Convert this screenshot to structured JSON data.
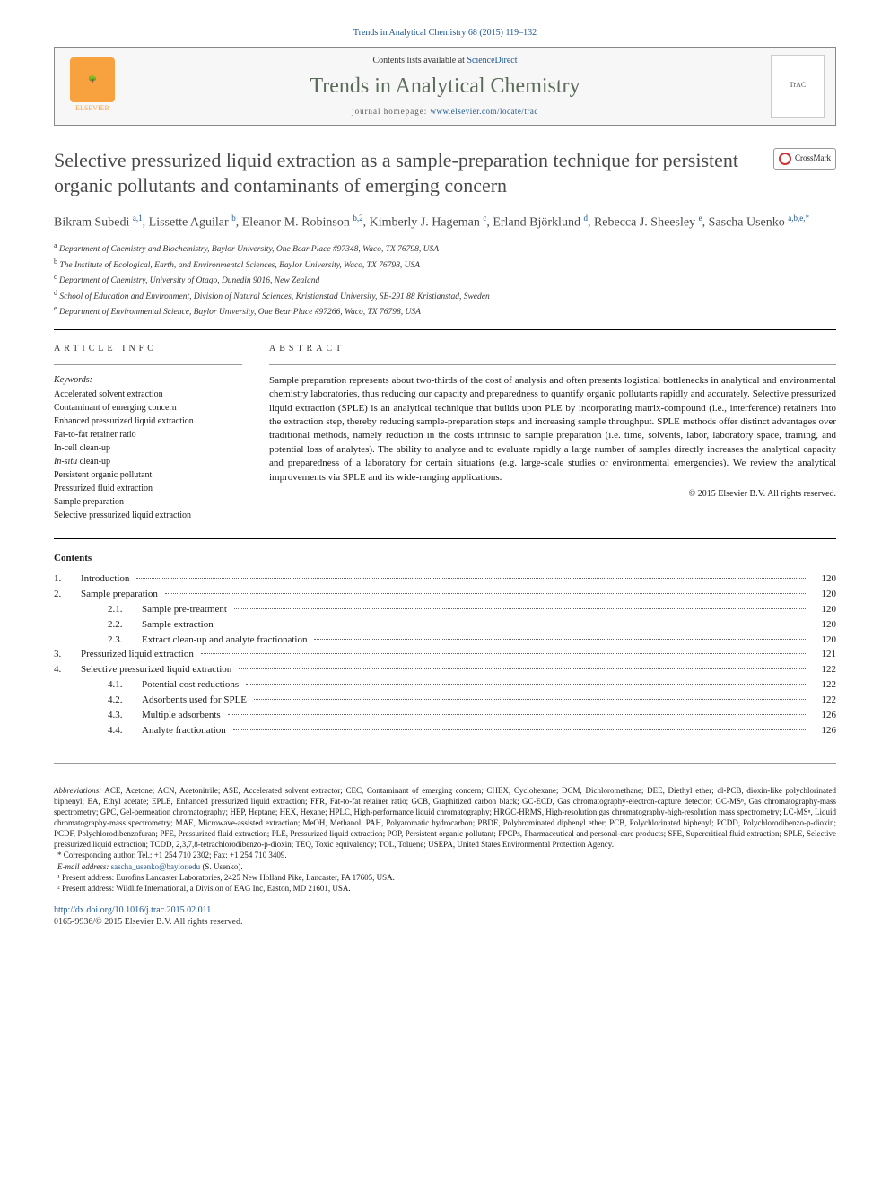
{
  "journal_ref": "Trends in Analytical Chemistry 68 (2015) 119–132",
  "header": {
    "contents_prefix": "Contents lists available at ",
    "contents_link_text": "ScienceDirect",
    "journal_name": "Trends in Analytical Chemistry",
    "homepage_prefix": "journal homepage: ",
    "homepage_link_text": "www.elsevier.com/locate/trac",
    "publisher_glyph": "🌳",
    "publisher_name": "ELSEVIER",
    "cover_label": "TrAC"
  },
  "crossmark_label": "CrossMark",
  "title": "Selective pressurized liquid extraction as a sample-preparation technique for persistent organic pollutants and contaminants of emerging concern",
  "authors_html": "Bikram Subedi <sup>a,1</sup>, Lissette Aguilar <sup>b</sup>, Eleanor M. Robinson <sup>b,2</sup>, Kimberly J. Hageman <sup>c</sup>, Erland Björklund <sup>d</sup>, Rebecca J. Sheesley <sup>e</sup>, Sascha Usenko <sup>a,b,e,*</sup>",
  "affiliations": [
    {
      "sup": "a",
      "text": "Department of Chemistry and Biochemistry, Baylor University, One Bear Place #97348, Waco, TX 76798, USA"
    },
    {
      "sup": "b",
      "text": "The Institute of Ecological, Earth, and Environmental Sciences, Baylor University, Waco, TX 76798, USA"
    },
    {
      "sup": "c",
      "text": "Department of Chemistry, University of Otago, Dunedin 9016, New Zealand"
    },
    {
      "sup": "d",
      "text": "School of Education and Environment, Division of Natural Sciences, Kristianstad University, SE-291 88 Kristianstad, Sweden"
    },
    {
      "sup": "e",
      "text": "Department of Environmental Science, Baylor University, One Bear Place #97266, Waco, TX 76798, USA"
    }
  ],
  "article_info_head": "ARTICLE INFO",
  "abstract_head": "ABSTRACT",
  "keywords_label": "Keywords:",
  "keywords": [
    "Accelerated solvent extraction",
    "Contaminant of emerging concern",
    "Enhanced pressurized liquid extraction",
    "Fat-to-fat retainer ratio",
    "In-cell clean-up",
    "In-situ clean-up",
    "Persistent organic pollutant",
    "Pressurized fluid extraction",
    "Sample preparation",
    "Selective pressurized liquid extraction"
  ],
  "abstract": "Sample preparation represents about two-thirds of the cost of analysis and often presents logistical bottlenecks in analytical and environmental chemistry laboratories, thus reducing our capacity and preparedness to quantify organic pollutants rapidly and accurately. Selective pressurized liquid extraction (SPLE) is an analytical technique that builds upon PLE by incorporating matrix-compound (i.e., interference) retainers into the extraction step, thereby reducing sample-preparation steps and increasing sample throughput. SPLE methods offer distinct advantages over traditional methods, namely reduction in the costs intrinsic to sample preparation (i.e. time, solvents, labor, laboratory space, training, and potential loss of analytes). The ability to analyze and to evaluate rapidly a large number of samples directly increases the analytical capacity and preparedness of a laboratory for certain situations (e.g. large-scale studies or environmental emergencies). We review the analytical improvements via SPLE and its wide-ranging applications.",
  "copyright": "© 2015 Elsevier B.V. All rights reserved.",
  "contents_label": "Contents",
  "toc": [
    {
      "num": "1.",
      "label": "Introduction",
      "page": "120"
    },
    {
      "num": "2.",
      "label": "Sample preparation",
      "page": "120"
    },
    {
      "sub": "2.1.",
      "label": "Sample pre-treatment",
      "page": "120"
    },
    {
      "sub": "2.2.",
      "label": "Sample extraction",
      "page": "120"
    },
    {
      "sub": "2.3.",
      "label": "Extract clean-up and analyte fractionation",
      "page": "120"
    },
    {
      "num": "3.",
      "label": "Pressurized liquid extraction",
      "page": "121"
    },
    {
      "num": "4.",
      "label": "Selective pressurized liquid extraction",
      "page": "122"
    },
    {
      "sub": "4.1.",
      "label": "Potential cost reductions",
      "page": "122"
    },
    {
      "sub": "4.2.",
      "label": "Adsorbents used for SPLE",
      "page": "122"
    },
    {
      "sub": "4.3.",
      "label": "Multiple adsorbents",
      "page": "126"
    },
    {
      "sub": "4.4.",
      "label": "Analyte fractionation",
      "page": "126"
    }
  ],
  "abbrev_label": "Abbreviations:",
  "abbreviations": "ACE, Acetone; ACN, Acetonitrile; ASE, Accelerated solvent extractor; CEC, Contaminant of emerging concern; CHEX, Cyclohexane; DCM, Dichloromethane; DEE, Diethyl ether; dl-PCB, dioxin-like polychlorinated biphenyl; EA, Ethyl acetate; EPLE, Enhanced pressurized liquid extraction; FFR, Fat-to-fat retainer ratio; GCB, Graphitized carbon black; GC-ECD, Gas chromatography-electron-capture detector; GC-MSⁿ, Gas chromatography-mass spectrometry; GPC, Gel-permeation chromatography; HEP, Heptane; HEX, Hexane; HPLC, High-performance liquid chromatography; HRGC-HRMS, High-resolution gas chromatography-high-resolution mass spectrometry; LC-MSⁿ, Liquid chromatography-mass spectrometry; MAE, Microwave-assisted extraction; MeOH, Methanol; PAH, Polyaromatic hydrocarbon; PBDE, Polybrominated diphenyl ether; PCB, Polychlorinated biphenyl; PCDD, Polychlorodibenzo-p-dioxin; PCDF, Polychlorodibenzofuran; PFE, Pressurized fluid extraction; PLE, Pressurized liquid extraction; POP, Persistent organic pollutant; PPCPs, Pharmaceutical and personal-care products; SFE, Supercritical fluid extraction; SPLE, Selective pressurized liquid extraction; TCDD, 2,3,7,8-tetrachlorodibenzo-p-dioxin; TEQ, Toxic equivalency; TOL, Toluene; USEPA, United States Environmental Protection Agency.",
  "corresponding": "* Corresponding author. Tel.: +1 254 710 2302; Fax: +1 254 710 3409.",
  "email_label": "E-mail address:",
  "email_value": "sascha_usenko@baylor.edu",
  "email_suffix": "(S. Usenko).",
  "present1": "¹ Present address: Eurofins Lancaster Laboratories, 2425 New Holland Pike, Lancaster, PA 17605, USA.",
  "present2": "² Present address: Wildlife International, a Division of EAG Inc, Easton, MD 21601, USA.",
  "doi": "http://dx.doi.org/10.1016/j.trac.2015.02.011",
  "issn_line": "0165-9936/© 2015 Elsevier B.V. All rights reserved.",
  "colors": {
    "link": "#1a5490",
    "title": "#4a4a4a",
    "journal": "#5a6b5a",
    "elsevier": "#f8a13f"
  }
}
